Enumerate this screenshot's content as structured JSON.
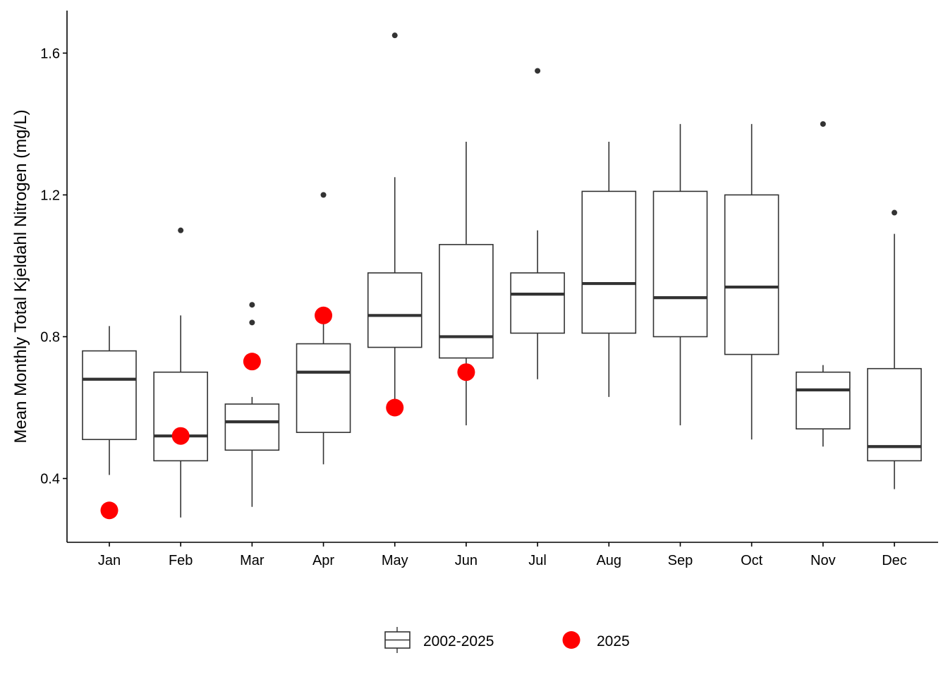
{
  "chart_data": {
    "type": "box",
    "ylabel": "Mean Monthly Total Kjeldahl Nitrogen (mg/L)",
    "xlabel": "",
    "ylim": [
      0.22,
      1.72
    ],
    "yticks": [
      0.4,
      0.8,
      1.2,
      1.6
    ],
    "ytick_labels": [
      "0.4",
      "0.8",
      "1.2",
      "1.6"
    ],
    "grid": false,
    "legend_position": "bottom",
    "categories": [
      "Jan",
      "Feb",
      "Mar",
      "Apr",
      "May",
      "Jun",
      "Jul",
      "Aug",
      "Sep",
      "Oct",
      "Nov",
      "Dec"
    ],
    "series": [
      {
        "name": "2002-2025",
        "kind": "boxplot",
        "color": "#333333",
        "boxes": [
          {
            "whisker_low": 0.41,
            "q1": 0.51,
            "median": 0.68,
            "q3": 0.76,
            "whisker_high": 0.83,
            "outliers": []
          },
          {
            "whisker_low": 0.29,
            "q1": 0.45,
            "median": 0.52,
            "q3": 0.7,
            "whisker_high": 0.86,
            "outliers": [
              1.1
            ]
          },
          {
            "whisker_low": 0.32,
            "q1": 0.48,
            "median": 0.56,
            "q3": 0.61,
            "whisker_high": 0.63,
            "outliers": [
              0.84,
              0.89
            ]
          },
          {
            "whisker_low": 0.44,
            "q1": 0.53,
            "median": 0.7,
            "q3": 0.78,
            "whisker_high": 0.85,
            "outliers": [
              1.2
            ]
          },
          {
            "whisker_low": 0.6,
            "q1": 0.77,
            "median": 0.86,
            "q3": 0.98,
            "whisker_high": 1.25,
            "outliers": [
              1.65
            ]
          },
          {
            "whisker_low": 0.55,
            "q1": 0.74,
            "median": 0.8,
            "q3": 1.06,
            "whisker_high": 1.35,
            "outliers": []
          },
          {
            "whisker_low": 0.68,
            "q1": 0.81,
            "median": 0.92,
            "q3": 0.98,
            "whisker_high": 1.1,
            "outliers": [
              1.55
            ]
          },
          {
            "whisker_low": 0.63,
            "q1": 0.81,
            "median": 0.95,
            "q3": 1.21,
            "whisker_high": 1.35,
            "outliers": []
          },
          {
            "whisker_low": 0.55,
            "q1": 0.8,
            "median": 0.91,
            "q3": 1.21,
            "whisker_high": 1.4,
            "outliers": []
          },
          {
            "whisker_low": 0.51,
            "q1": 0.75,
            "median": 0.94,
            "q3": 1.2,
            "whisker_high": 1.4,
            "outliers": []
          },
          {
            "whisker_low": 0.49,
            "q1": 0.54,
            "median": 0.65,
            "q3": 0.7,
            "whisker_high": 0.72,
            "outliers": [
              1.4
            ]
          },
          {
            "whisker_low": 0.37,
            "q1": 0.45,
            "median": 0.49,
            "q3": 0.71,
            "whisker_high": 1.09,
            "outliers": [
              1.15
            ]
          }
        ]
      },
      {
        "name": "2025",
        "kind": "points",
        "color": "#ff0000",
        "values": [
          0.31,
          0.52,
          0.73,
          0.86,
          0.6,
          0.7,
          null,
          null,
          null,
          null,
          null,
          null
        ]
      }
    ]
  }
}
